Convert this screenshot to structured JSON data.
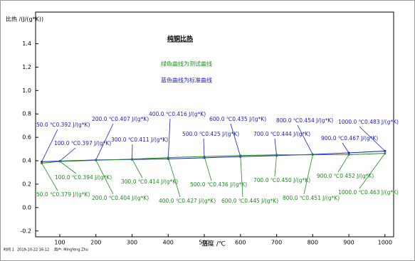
{
  "chart_data": {
    "type": "line",
    "title": "纯铜比热",
    "annotations": [
      "绿色曲线为测试曲线",
      "蓝色曲线为标准曲线"
    ],
    "y_label": "比热 /(J/(g*K))",
    "x_label": "温度 /℃",
    "footer": [
      "时间 1",
      "2019-10-22 16:12",
      "用户: Mingfeng.Zhu"
    ],
    "x": [
      50,
      100,
      200,
      300,
      400,
      500,
      600,
      700,
      800,
      900,
      1000
    ],
    "xlim": [
      33,
      1024
    ],
    "xticks": [
      100,
      200,
      300,
      400,
      500,
      600,
      700,
      800,
      900,
      1000
    ],
    "ylim": [
      -0.25,
      1.67
    ],
    "yticks": [
      -0.2,
      {
        "value": 0,
        "label": "0.0"
      },
      0.2,
      0.4,
      0.6,
      0.8,
      {
        "value": 1,
        "label": "1.0"
      },
      1.2,
      1.4
    ],
    "series": [
      {
        "name": "标准曲线",
        "color": "#1a1ad0",
        "values": [
          0.392,
          0.397,
          0.407,
          0.411,
          0.416,
          0.425,
          0.435,
          0.444,
          0.454,
          0.467,
          0.483
        ],
        "value_labels": [
          "50.0 ℃0.392 J/(g*K)",
          "100.0 ℃0.397 J/(g*K)",
          "200.0 ℃0.407 J/(g*K)",
          "300.0 ℃0.411 J/(g*K)",
          "400.0 ℃0.416 J/(g*K)",
          "500.0 ℃0.425 J/(g*K)",
          "600.0 ℃0.435 J/(g*K)",
          "700.0 ℃0.444 J/(g*K)",
          "800.0 ℃0.454 J/(g*K)",
          "900.0 ℃0.467 J/(g*K)",
          "1000.0 ℃0.483 J/(g*K)"
        ]
      },
      {
        "name": "测试曲线",
        "color": "#1e8c1e",
        "values": [
          0.379,
          0.394,
          0.404,
          0.414,
          0.427,
          0.436,
          0.445,
          0.45,
          0.451,
          0.452,
          0.463
        ],
        "value_labels": [
          "50.0 ℃0.379 J/(g*K)",
          "100.0 ℃0.394 J/(g*K)",
          "200.0 ℃0.404 J/(g*K)",
          "300.0 ℃0.414 J/(g*K)",
          "400.0 ℃0.427 J/(g*K)",
          "500.0 ℃0.436 J/(g*K)",
          "600.0 ℃0.445 J/(g*K)",
          "700.0 ℃0.450 J/(g*K)",
          "800.0 ℃0.451 J/(g*K)",
          "900.0 ℃0.452 J/(g*K)",
          "1000.0 ℃0.463 J/(g*K)"
        ]
      }
    ]
  }
}
